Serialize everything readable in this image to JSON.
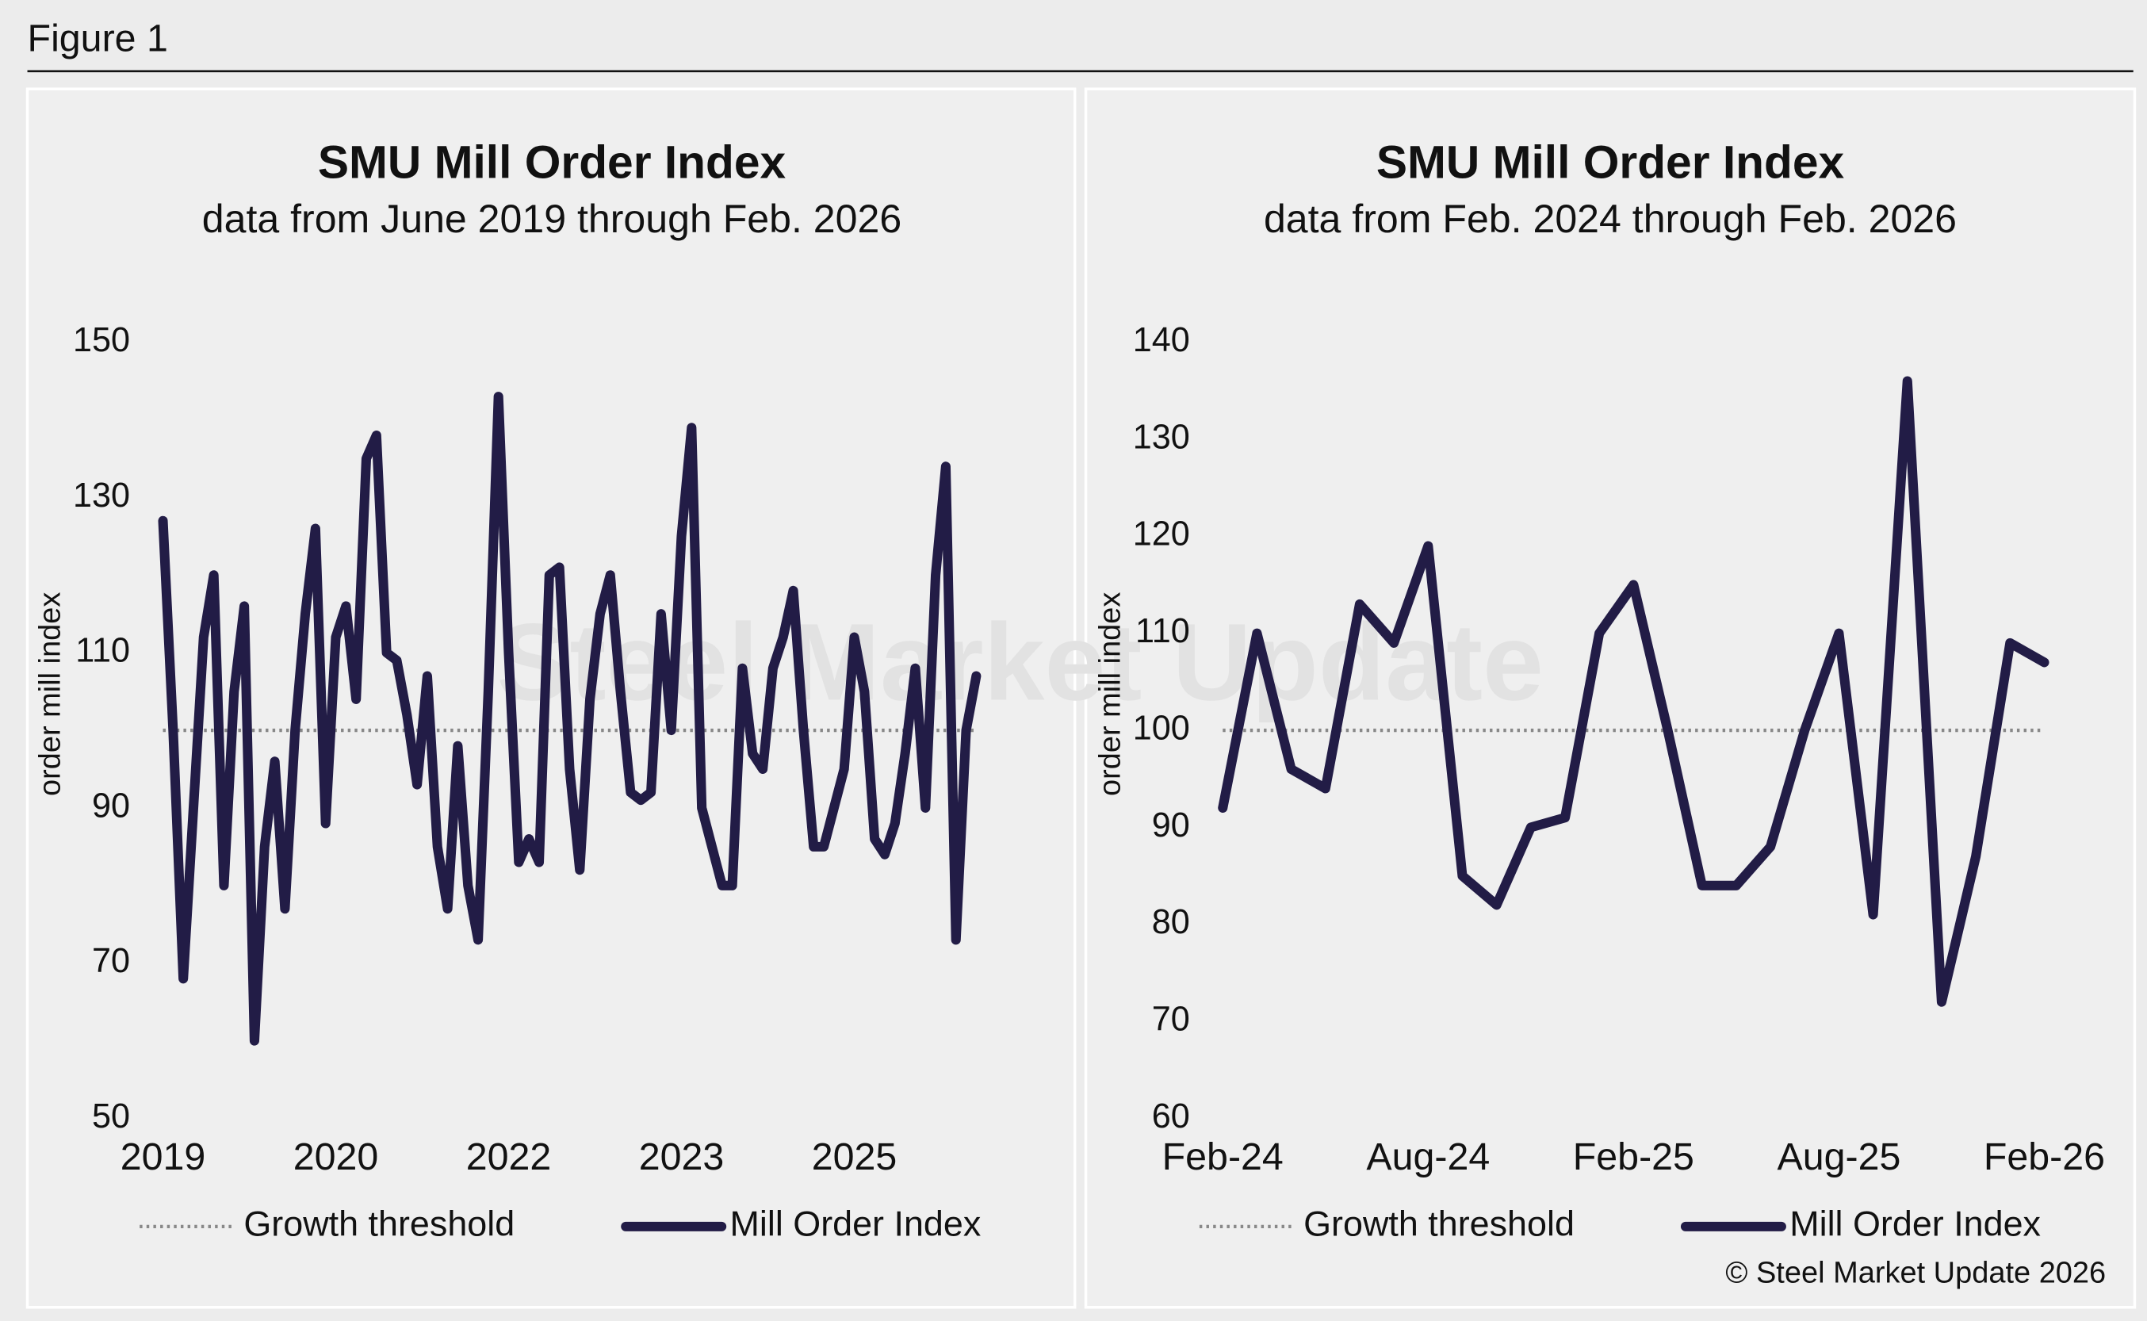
{
  "figure_title": "Figure 1",
  "source": "© Steel Market Update 2026",
  "watermark": "Steel Market Update",
  "chart_data": [
    {
      "type": "line",
      "title": "SMU Mill Order Index",
      "subtitle": "data from June 2019 through Feb. 2026",
      "y_label": "order mill index",
      "categories": [
        "2019",
        null,
        null,
        null,
        null,
        null,
        null,
        null,
        null,
        null,
        null,
        null,
        null,
        null,
        null,
        null,
        null,
        "2020",
        null,
        null,
        null,
        null,
        null,
        null,
        null,
        null,
        null,
        null,
        null,
        null,
        null,
        null,
        null,
        null,
        "2022",
        null,
        null,
        null,
        null,
        null,
        null,
        null,
        null,
        null,
        null,
        null,
        null,
        null,
        null,
        null,
        null,
        "2023",
        null,
        null,
        null,
        null,
        null,
        null,
        null,
        null,
        null,
        null,
        null,
        null,
        null,
        null,
        null,
        null,
        "2025",
        null,
        null,
        null,
        null,
        null,
        null,
        null,
        null,
        null,
        null,
        null,
        null
      ],
      "series": [
        {
          "name": "Mill Order Index",
          "color": "#221c46",
          "values": [
            127,
            100,
            68,
            90,
            112,
            120,
            80,
            105,
            116,
            60,
            85,
            96,
            77,
            100,
            115,
            126,
            88,
            112,
            116,
            104,
            135,
            138,
            110,
            109,
            102,
            93,
            107,
            85,
            77,
            98,
            80,
            73,
            105,
            143,
            110,
            83,
            86,
            83,
            120,
            121,
            95,
            82,
            104,
            115,
            120,
            105,
            92,
            91,
            92,
            115,
            100,
            125,
            139,
            90,
            85,
            80,
            80,
            108,
            97,
            95,
            108,
            112,
            118,
            100,
            85,
            85,
            90,
            95,
            112,
            105,
            86,
            84,
            88,
            97,
            108,
            90,
            120,
            134,
            73,
            100,
            107
          ]
        }
      ],
      "reference_line": {
        "name": "Growth threshold",
        "value": 100,
        "color": "#888888"
      },
      "ylim": [
        50,
        150
      ],
      "yticks": [
        50,
        70,
        90,
        110,
        130,
        150
      ],
      "grid": false
    },
    {
      "type": "line",
      "title": "SMU Mill Order Index",
      "subtitle": "data from Feb. 2024 through Feb. 2026",
      "y_label": "order mill index",
      "categories": [
        "Feb-24",
        null,
        null,
        null,
        null,
        null,
        "Aug-24",
        null,
        null,
        null,
        null,
        null,
        "Feb-25",
        null,
        null,
        null,
        null,
        null,
        "Aug-25",
        null,
        null,
        null,
        null,
        null,
        "Feb-26"
      ],
      "series": [
        {
          "name": "Mill Order Index",
          "color": "#221c46",
          "values": [
            92,
            110,
            96,
            94,
            113,
            109,
            119,
            85,
            82,
            90,
            91,
            110,
            115,
            100,
            84,
            84,
            88,
            100,
            110,
            81,
            136,
            72,
            87,
            109,
            107
          ]
        }
      ],
      "reference_line": {
        "name": "Growth threshold",
        "value": 100,
        "color": "#888888"
      },
      "ylim": [
        60,
        140
      ],
      "yticks": [
        60,
        70,
        80,
        90,
        100,
        110,
        120,
        130,
        140
      ],
      "grid": false
    }
  ]
}
